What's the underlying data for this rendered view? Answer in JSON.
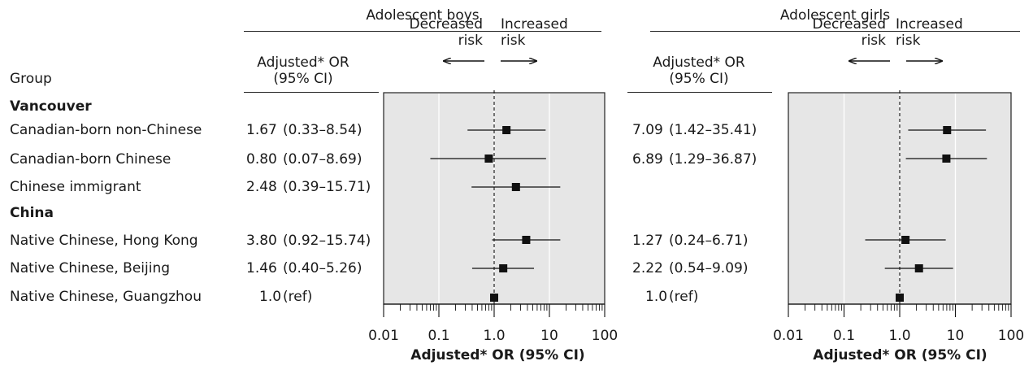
{
  "header": {
    "group_label": "Group",
    "or_column_label": "Adjusted* OR\n(95% CI)",
    "decreased_label": "Decreased\nrisk",
    "increased_label": "Increased\nrisk"
  },
  "sections": [
    {
      "heading": "Vancouver",
      "rows": [
        0,
        1,
        2
      ]
    },
    {
      "heading": "China",
      "rows": [
        3,
        4,
        5
      ]
    }
  ],
  "groups": [
    "Canadian-born non-Chinese",
    "Canadian-born Chinese",
    "Chinese immigrant",
    "Native Chinese, Hong Kong",
    "Native Chinese, Beijing",
    "Native Chinese, Guangzhou"
  ],
  "chart_data": [
    {
      "type": "forest",
      "title": "Adolescent boys",
      "xlabel": "Adjusted* OR (95% CI)",
      "x_scale": "log",
      "xlim": [
        0.01,
        100
      ],
      "x_ticks": [
        "0.01",
        "0.1",
        "1.0",
        "10",
        "100"
      ],
      "reference_line": 1.0,
      "rows": [
        {
          "group": "Canadian-born non-Chinese",
          "or": 1.67,
          "lo": 0.33,
          "hi": 8.54,
          "label_or": "1.67",
          "label_ci": "(0.33–8.54)"
        },
        {
          "group": "Canadian-born Chinese",
          "or": 0.8,
          "lo": 0.07,
          "hi": 8.69,
          "label_or": "0.80",
          "label_ci": "(0.07–8.69)"
        },
        {
          "group": "Chinese immigrant",
          "or": 2.48,
          "lo": 0.39,
          "hi": 15.71,
          "label_or": "2.48",
          "label_ci": "(0.39–15.71)"
        },
        {
          "group": "Native Chinese, Hong Kong",
          "or": 3.8,
          "lo": 0.92,
          "hi": 15.74,
          "label_or": "3.80",
          "label_ci": "(0.92–15.74)"
        },
        {
          "group": "Native Chinese, Beijing",
          "or": 1.46,
          "lo": 0.4,
          "hi": 5.26,
          "label_or": "1.46",
          "label_ci": "(0.40–5.26)"
        },
        {
          "group": "Native Chinese, Guangzhou",
          "or": 1.0,
          "lo": null,
          "hi": null,
          "label_or": "1.0",
          "label_ci": "(ref)"
        }
      ]
    },
    {
      "type": "forest",
      "title": "Adolescent girls",
      "xlabel": "Adjusted* OR (95% CI)",
      "x_scale": "log",
      "xlim": [
        0.01,
        100
      ],
      "x_ticks": [
        "0.01",
        "0.1",
        "1.0",
        "10",
        "100"
      ],
      "reference_line": 1.0,
      "rows": [
        {
          "group": "Canadian-born non-Chinese",
          "or": 7.09,
          "lo": 1.42,
          "hi": 35.41,
          "label_or": "7.09",
          "label_ci": "(1.42–35.41)"
        },
        {
          "group": "Canadian-born Chinese",
          "or": 6.89,
          "lo": 1.29,
          "hi": 36.87,
          "label_or": "6.89",
          "label_ci": "(1.29–36.87)"
        },
        {
          "group": "Chinese immigrant",
          "or": null,
          "lo": null,
          "hi": null,
          "label_or": "",
          "label_ci": ""
        },
        {
          "group": "Native Chinese, Hong Kong",
          "or": 1.27,
          "lo": 0.24,
          "hi": 6.71,
          "label_or": "1.27",
          "label_ci": "(0.24–6.71)"
        },
        {
          "group": "Native Chinese, Beijing",
          "or": 2.22,
          "lo": 0.54,
          "hi": 9.09,
          "label_or": "2.22",
          "label_ci": "(0.54–9.09)"
        },
        {
          "group": "Native Chinese, Guangzhou",
          "or": 1.0,
          "lo": null,
          "hi": null,
          "label_or": "1.0",
          "label_ci": "(ref)"
        }
      ]
    }
  ],
  "colors": {
    "plot_bg": "#e6e6e6",
    "gridline": "#ffffff",
    "marker": "#111111",
    "line": "#111111"
  }
}
